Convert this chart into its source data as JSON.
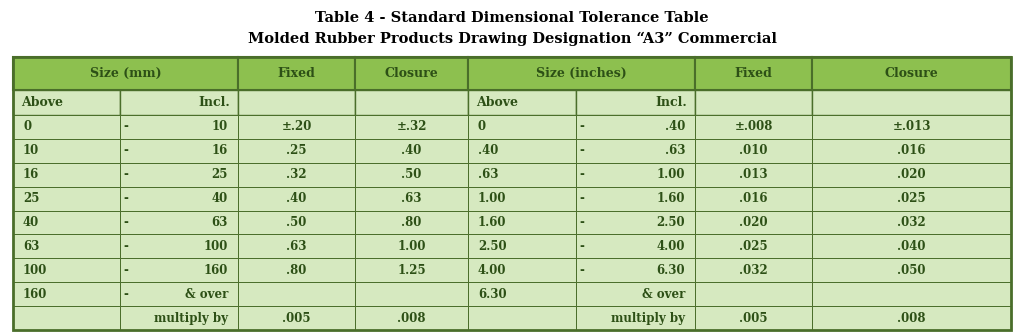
{
  "title_line1": "Table 4 - Standard Dimensional Tolerance Table",
  "title_line2": "Molded Rubber Products Drawing Designation “A3” Commercial",
  "bg_color": "#ffffff",
  "header_bg": "#8dc04f",
  "row_bg": "#d6e9c0",
  "border_color": "#4a6e2a",
  "text_color": "#2d5016",
  "title_fontsize": 10.5,
  "header_fontsize": 9.0,
  "data_fontsize": 8.5,
  "rows_mm": [
    [
      "0",
      "-",
      "10",
      "±.20",
      "±.32"
    ],
    [
      "10",
      "-",
      "16",
      ".25",
      ".40"
    ],
    [
      "16",
      "-",
      "25",
      ".32",
      ".50"
    ],
    [
      "25",
      "-",
      "40",
      ".40",
      ".63"
    ],
    [
      "40",
      "-",
      "63",
      ".50",
      ".80"
    ],
    [
      "63",
      "-",
      "100",
      ".63",
      "1.00"
    ],
    [
      "100",
      "-",
      "160",
      ".80",
      "1.25"
    ],
    [
      "160",
      "-",
      "& over",
      "",
      ""
    ],
    [
      "",
      "",
      "multiply by",
      ".005",
      ".008"
    ]
  ],
  "rows_in": [
    [
      "0",
      "-",
      ".40",
      "±.008",
      "±.013"
    ],
    [
      ".40",
      "-",
      ".63",
      ".010",
      ".016"
    ],
    [
      ".63",
      "-",
      "1.00",
      ".013",
      ".020"
    ],
    [
      "1.00",
      "-",
      "1.60",
      ".016",
      ".025"
    ],
    [
      "1.60",
      "-",
      "2.50",
      ".020",
      ".032"
    ],
    [
      "2.50",
      "-",
      "4.00",
      ".025",
      ".040"
    ],
    [
      "4.00",
      "-",
      "6.30",
      ".032",
      ".050"
    ],
    [
      "6.30",
      "",
      "& over",
      "",
      ""
    ],
    [
      "",
      "",
      "multiply by",
      ".005",
      ".008"
    ]
  ]
}
